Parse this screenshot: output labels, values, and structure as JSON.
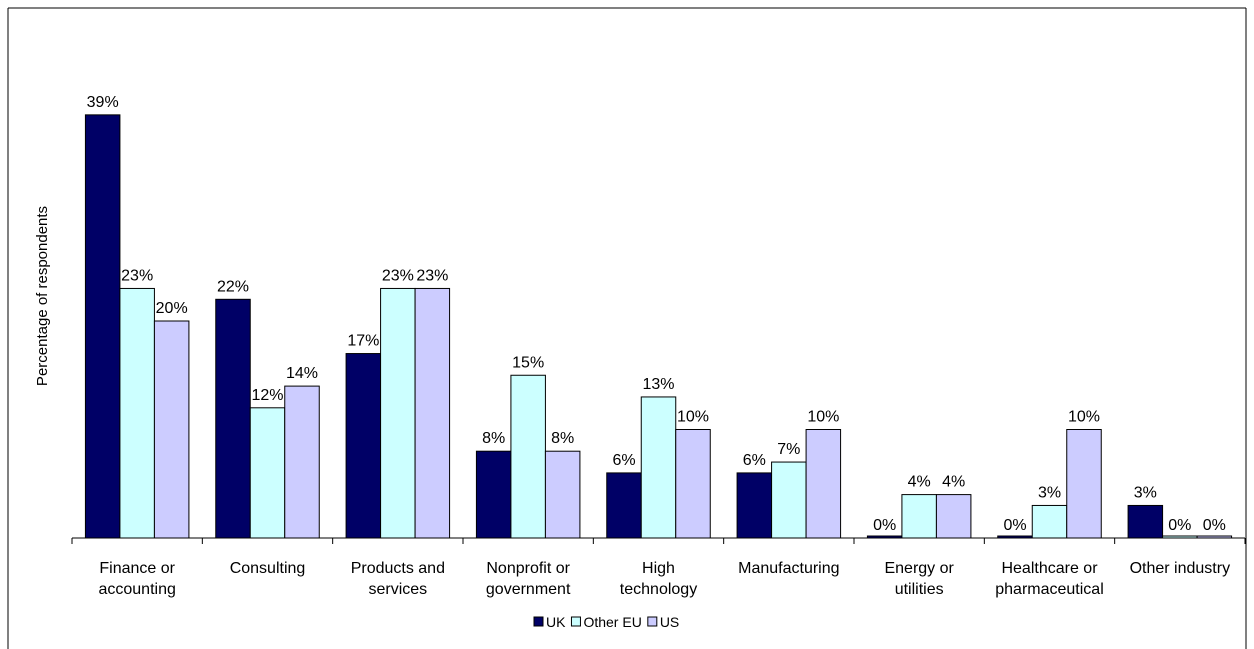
{
  "chart_data": {
    "type": "bar",
    "ylabel": "Percentage of respondents",
    "categories": [
      [
        "Finance or",
        "accounting"
      ],
      [
        "Consulting"
      ],
      [
        "Products and",
        "services"
      ],
      [
        "Nonprofit or",
        "government"
      ],
      [
        "High",
        "technology"
      ],
      [
        "Manufacturing"
      ],
      [
        "Energy or",
        "utilities"
      ],
      [
        "Healthcare or",
        "pharmaceutical"
      ],
      [
        "Other industry"
      ]
    ],
    "series": [
      {
        "name": "UK",
        "color": "#000066",
        "values": [
          39,
          22,
          17,
          8,
          6,
          6,
          0,
          0,
          3
        ],
        "labels": [
          "39%",
          "22%",
          "17%",
          "8%",
          "6%",
          "6%",
          "0%",
          "0%",
          "3%"
        ]
      },
      {
        "name": "Other EU",
        "color": "#CCFFFF",
        "values": [
          23,
          12,
          23,
          15,
          13,
          7,
          4,
          3,
          0
        ],
        "labels": [
          "23%",
          "12%",
          "23%",
          "15%",
          "13%",
          "7%",
          "4%",
          "3%",
          "0%"
        ]
      },
      {
        "name": "US",
        "color": "#CCCCFF",
        "values": [
          20,
          14,
          23,
          8,
          10,
          10,
          4,
          10,
          0
        ],
        "labels": [
          "20%",
          "14%",
          "23%",
          "8%",
          "10%",
          "10%",
          "4%",
          "10%",
          "0%"
        ]
      }
    ],
    "ylim": [
      0,
      45
    ],
    "grid": false,
    "legend_position": "bottom"
  }
}
